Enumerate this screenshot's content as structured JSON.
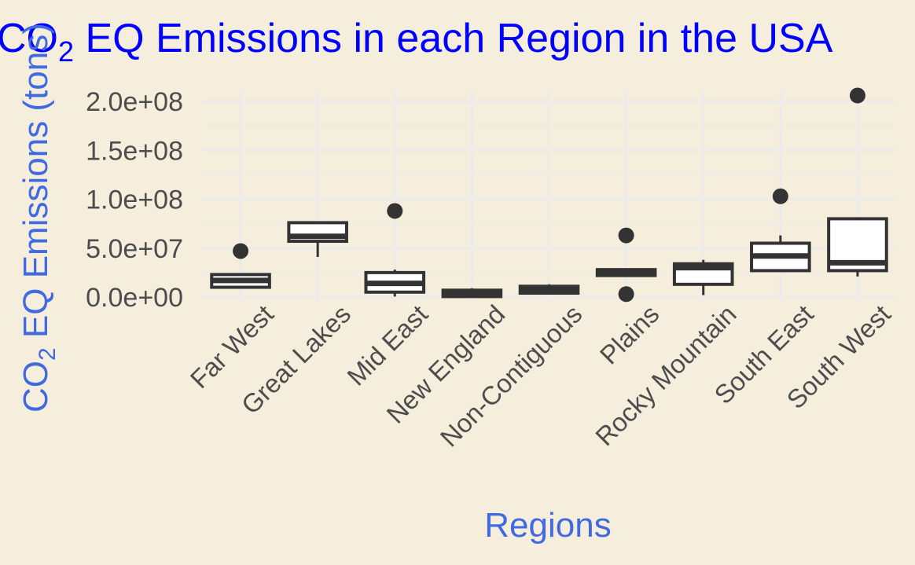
{
  "chart_data": {
    "type": "boxplot",
    "title_prefix": "CO",
    "title_sub": "2",
    "title_suffix": " EQ Emissions in each Region in the USA",
    "xlabel": "Regions",
    "ylabel_prefix": "CO",
    "ylabel_sub": "2",
    "ylabel_suffix": " EQ Emissions (tons)",
    "ylim": [
      -5000000,
      215000000
    ],
    "y_ticks": [
      0,
      50000000,
      100000000,
      150000000,
      200000000
    ],
    "y_tick_labels": [
      "0.0e+00",
      "5.0e+07",
      "1.0e+08",
      "1.5e+08",
      "2.0e+08"
    ],
    "grid": true,
    "categories": [
      "Far West",
      "Great Lakes",
      "Mid East",
      "New England",
      "Non-Contiguous",
      "Plains",
      "Rocky Mountain",
      "South East",
      "South West"
    ],
    "boxes": [
      {
        "min": 10000000,
        "q1": 10000000,
        "median": 17000000,
        "q3": 23000000,
        "max": 23000000,
        "outliers": [
          47000000
        ]
      },
      {
        "min": 41000000,
        "q1": 57000000,
        "median": 62000000,
        "q3": 76000000,
        "max": 76000000,
        "outliers": []
      },
      {
        "min": 500000,
        "q1": 5000000,
        "median": 14000000,
        "q3": 25000000,
        "max": 28000000,
        "outliers": [
          88000000
        ]
      },
      {
        "min": 0,
        "q1": 500000,
        "median": 4000000,
        "q3": 7000000,
        "max": 9000000,
        "outliers": []
      },
      {
        "min": 3000000,
        "q1": 4000000,
        "median": 8000000,
        "q3": 11000000,
        "max": 13000000,
        "outliers": []
      },
      {
        "min": 22000000,
        "q1": 22000000,
        "median": 24000000,
        "q3": 28000000,
        "max": 28000000,
        "outliers": [
          63000000,
          3000000
        ]
      },
      {
        "min": 2000000,
        "q1": 13000000,
        "median": 30000000,
        "q3": 34000000,
        "max": 38000000,
        "outliers": []
      },
      {
        "min": 27000000,
        "q1": 27000000,
        "median": 42000000,
        "q3": 55000000,
        "max": 63000000,
        "outliers": [
          103000000
        ]
      },
      {
        "min": 21000000,
        "q1": 27000000,
        "median": 35000000,
        "q3": 80000000,
        "max": 80000000,
        "outliers": [
          206000000
        ]
      }
    ],
    "colors": {
      "background": "#f5eedd",
      "title": "#0000ff",
      "axis_title": "#4169e1",
      "box_fill": "#ffffff",
      "box_stroke": "#333333",
      "grid": "#ebebeb"
    }
  }
}
